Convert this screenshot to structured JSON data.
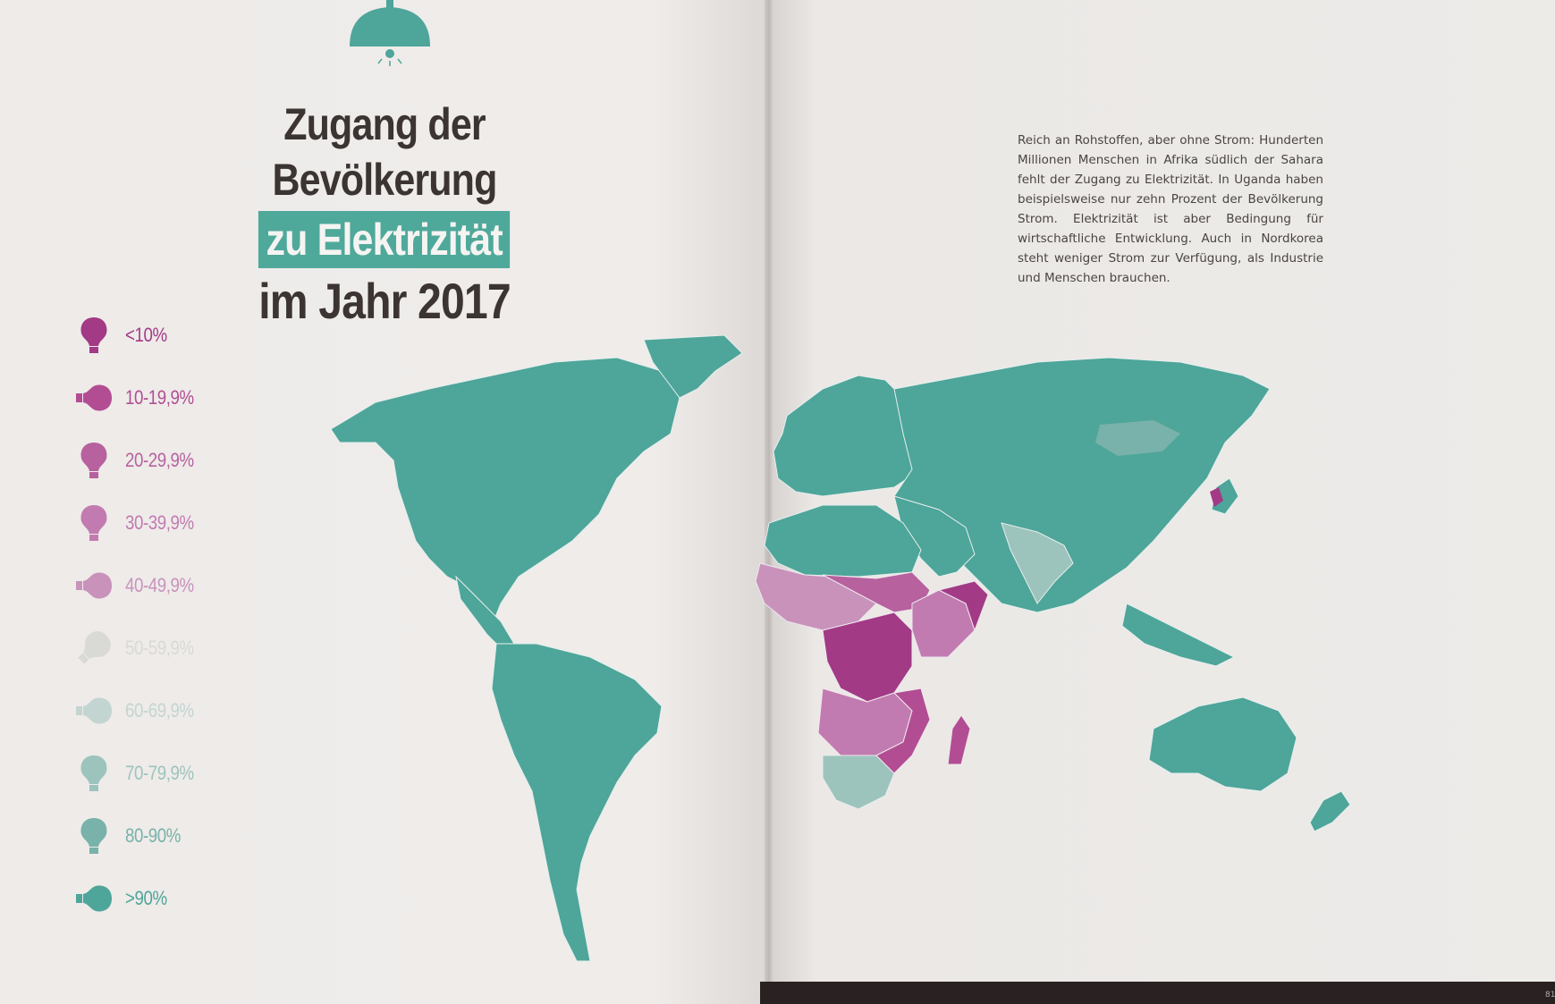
{
  "title": {
    "line1": "Zugang der Bevölkerung",
    "line2": "zu Elektrizität",
    "line3": "im Jahr 2017"
  },
  "description": "Reich an Rohstoffen, aber ohne Strom: Hunderten Millionen Menschen in Afrika südlich der Sahara fehlt der Zugang zu Elektrizität. In Uganda haben beispielsweise nur zehn Prozent der Bevölkerung Strom. Elektrizität ist aber Bedingung für wirtschaftliche Entwicklung. Auch in Nordkorea steht weniger Strom zur Verfügung, als Industrie und Menschen brauchen.",
  "legend": [
    {
      "label": "<10%",
      "color": "#a23a86",
      "icon": "lightbulb-icon"
    },
    {
      "label": "10-19,9%",
      "color": "#b24d93",
      "icon": "lightbulb-icon"
    },
    {
      "label": "20-29,9%",
      "color": "#b7619f",
      "icon": "lightbulb-icon"
    },
    {
      "label": "30-39,9%",
      "color": "#c27bb0",
      "icon": "lightbulb-icon"
    },
    {
      "label": "40-49,9%",
      "color": "#c892bb",
      "icon": "lightbulb-icon"
    },
    {
      "label": "50-59,9%",
      "color": "#d9d9d6",
      "icon": "lightbulb-icon"
    },
    {
      "label": "60-69,9%",
      "color": "#c3d5d1",
      "icon": "lightbulb-icon"
    },
    {
      "label": "70-79,9%",
      "color": "#9dc3bd",
      "icon": "lightbulb-icon"
    },
    {
      "label": "80-90%",
      "color": "#78b2aa",
      "icon": "lightbulb-icon"
    },
    {
      "label": ">90%",
      "color": "#4ea59a",
      "icon": "lightbulb-icon"
    }
  ],
  "colors": {
    "teal": "#4ea59a",
    "title_text": "#3b3432",
    "highlight_bg": "#4fa99b"
  },
  "page_number": "81"
}
